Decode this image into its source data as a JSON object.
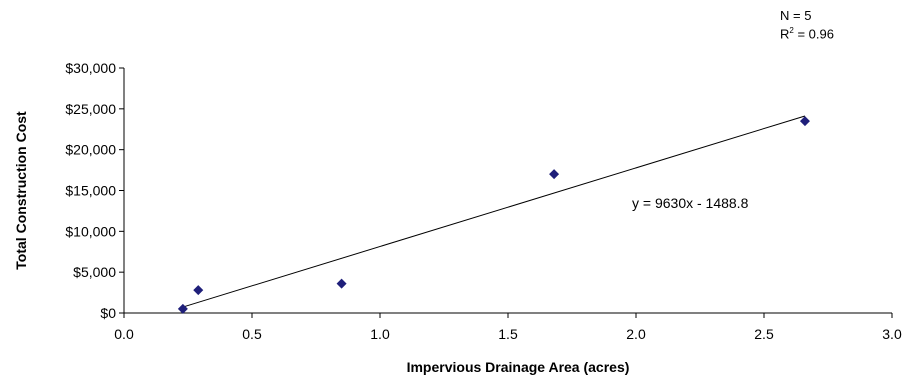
{
  "annotations": {
    "n_label": "N = 5",
    "r2_prefix": "R",
    "r2_sup": "2",
    "r2_suffix": " = 0.96",
    "equation": "y = 9630x - 1488.8"
  },
  "chart_data": {
    "type": "scatter",
    "title": "",
    "xlabel": "Impervious Drainage Area (acres)",
    "ylabel": "Total Construction Cost",
    "xlim": [
      0.0,
      3.0
    ],
    "ylim": [
      0,
      30000
    ],
    "x_ticks": [
      0.0,
      0.5,
      1.0,
      1.5,
      2.0,
      2.5,
      3.0
    ],
    "x_tick_labels": [
      "0.0",
      "0.5",
      "1.0",
      "1.5",
      "2.0",
      "2.5",
      "3.0"
    ],
    "y_ticks": [
      0,
      5000,
      10000,
      15000,
      20000,
      25000,
      30000
    ],
    "y_tick_labels": [
      "$0",
      "$5,000",
      "$10,000",
      "$15,000",
      "$20,000",
      "$25,000",
      "$30,000"
    ],
    "grid": false,
    "legend": "none",
    "marker_color": "#1f1f7a",
    "series": [
      {
        "points": [
          {
            "x": 0.23,
            "y": 500
          },
          {
            "x": 0.29,
            "y": 2800
          },
          {
            "x": 0.85,
            "y": 3600
          },
          {
            "x": 1.68,
            "y": 17000
          },
          {
            "x": 2.66,
            "y": 23500
          }
        ]
      }
    ],
    "trendline": {
      "slope": 9630,
      "intercept": -1488.8,
      "x_range": [
        0.23,
        2.66
      ]
    }
  }
}
